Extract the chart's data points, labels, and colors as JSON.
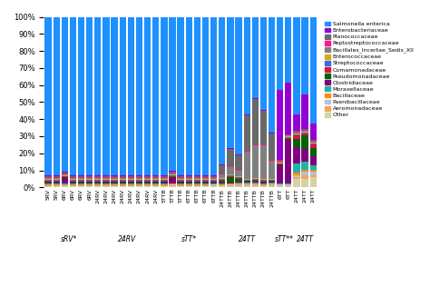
{
  "categories": [
    "5RV",
    "5RV",
    "6RV",
    "6RV",
    "6RV",
    "6RV",
    "24RV",
    "24RV",
    "24RV",
    "24RV",
    "24RV",
    "24RV",
    "24RV",
    "24RV",
    "5TTB",
    "5TTB",
    "5TTB",
    "6TTB",
    "6TTB",
    "6TTB",
    "6TTB",
    "24TTB",
    "24TTB",
    "24TTB",
    "24TTB",
    "24TTB",
    "24TTB",
    "24TTB",
    "6TT",
    "6TT",
    "24TT",
    "24TT",
    "24TT"
  ],
  "group_labels": [
    "sRV*",
    "24RV",
    "sTT*",
    "24TT",
    "sTT**",
    "24TT"
  ],
  "group_boundaries": [
    6,
    14,
    21,
    28,
    30,
    33
  ],
  "legend_labels": [
    "Other",
    "Aeromonadaceae",
    "Paenibacillaceae",
    "Bacillaceae",
    "Moraxellaceae",
    "Clostridiaceae",
    "Pseudomonadaceae",
    "Comamonadaceae",
    "Streptococcaceae",
    "Enterococcaceae",
    "Bacillales_Incertae_Sedis_XII",
    "Peptostreptococcaceae",
    "Planococcaceae",
    "Enterobacteriaceae",
    "Salmonella enterica"
  ],
  "colors": [
    "#d3d3a4",
    "#f4a460",
    "#b0c4de",
    "#ff8c00",
    "#20b2aa",
    "#800080",
    "#006400",
    "#dc143c",
    "#4169e1",
    "#daa520",
    "#808080",
    "#ff1493",
    "#696969",
    "#9400d3",
    "#1e90ff"
  ],
  "data": [
    [
      0.005,
      0.005,
      0.005,
      0.005,
      0.005,
      0.005,
      0.005,
      0.005,
      0.005,
      0.005,
      0.005,
      0.005,
      0.005,
      0.005,
      0.005,
      0.005,
      0.005,
      0.005,
      0.005,
      0.005,
      0.005,
      0.005,
      0.005,
      0.005,
      0.005,
      0.005,
      0.005,
      0.005,
      0.005,
      0.005,
      0.05,
      0.05,
      0.06
    ],
    [
      0.005,
      0.005,
      0.005,
      0.005,
      0.005,
      0.005,
      0.005,
      0.005,
      0.005,
      0.005,
      0.005,
      0.005,
      0.005,
      0.005,
      0.005,
      0.005,
      0.005,
      0.005,
      0.005,
      0.005,
      0.005,
      0.005,
      0.005,
      0.005,
      0.005,
      0.005,
      0.005,
      0.005,
      0.005,
      0.005,
      0.01,
      0.02,
      0.01
    ],
    [
      0.005,
      0.005,
      0.005,
      0.005,
      0.005,
      0.005,
      0.005,
      0.005,
      0.005,
      0.005,
      0.005,
      0.005,
      0.005,
      0.005,
      0.005,
      0.005,
      0.005,
      0.005,
      0.005,
      0.005,
      0.005,
      0.005,
      0.005,
      0.005,
      0.005,
      0.005,
      0.005,
      0.005,
      0.005,
      0.005,
      0.01,
      0.02,
      0.02
    ],
    [
      0.005,
      0.005,
      0.005,
      0.005,
      0.005,
      0.005,
      0.005,
      0.005,
      0.005,
      0.005,
      0.005,
      0.005,
      0.005,
      0.005,
      0.005,
      0.005,
      0.005,
      0.005,
      0.005,
      0.005,
      0.005,
      0.005,
      0.005,
      0.005,
      0.005,
      0.005,
      0.005,
      0.005,
      0.005,
      0.005,
      0.02,
      0.01,
      0.01
    ],
    [
      0.005,
      0.005,
      0.005,
      0.005,
      0.005,
      0.005,
      0.005,
      0.005,
      0.005,
      0.005,
      0.005,
      0.005,
      0.005,
      0.005,
      0.005,
      0.005,
      0.005,
      0.005,
      0.005,
      0.005,
      0.005,
      0.005,
      0.005,
      0.005,
      0.005,
      0.005,
      0.005,
      0.005,
      0.005,
      0.005,
      0.05,
      0.05,
      0.03
    ],
    [
      0.005,
      0.005,
      0.03,
      0.005,
      0.005,
      0.005,
      0.005,
      0.005,
      0.005,
      0.005,
      0.005,
      0.005,
      0.005,
      0.005,
      0.005,
      0.03,
      0.005,
      0.005,
      0.005,
      0.005,
      0.005,
      0.005,
      0.005,
      0.005,
      0.005,
      0.005,
      0.005,
      0.005,
      0.1,
      0.25,
      0.1,
      0.07,
      0.05
    ],
    [
      0.005,
      0.005,
      0.005,
      0.005,
      0.005,
      0.005,
      0.005,
      0.005,
      0.005,
      0.005,
      0.005,
      0.005,
      0.005,
      0.005,
      0.005,
      0.005,
      0.005,
      0.005,
      0.005,
      0.005,
      0.005,
      0.01,
      0.03,
      0.02,
      0.005,
      0.005,
      0.005,
      0.005,
      0.005,
      0.005,
      0.05,
      0.08,
      0.05
    ],
    [
      0.005,
      0.005,
      0.005,
      0.005,
      0.005,
      0.005,
      0.005,
      0.005,
      0.005,
      0.005,
      0.005,
      0.005,
      0.005,
      0.005,
      0.005,
      0.005,
      0.005,
      0.005,
      0.005,
      0.005,
      0.005,
      0.005,
      0.005,
      0.005,
      0.005,
      0.005,
      0.005,
      0.005,
      0.005,
      0.005,
      0.02,
      0.01,
      0.02
    ],
    [
      0.005,
      0.005,
      0.005,
      0.005,
      0.005,
      0.005,
      0.005,
      0.005,
      0.005,
      0.005,
      0.005,
      0.005,
      0.005,
      0.005,
      0.005,
      0.005,
      0.005,
      0.005,
      0.005,
      0.005,
      0.005,
      0.005,
      0.005,
      0.005,
      0.005,
      0.005,
      0.005,
      0.005,
      0.005,
      0.005,
      0.005,
      0.005,
      0.005
    ],
    [
      0.005,
      0.005,
      0.005,
      0.005,
      0.005,
      0.005,
      0.005,
      0.005,
      0.005,
      0.005,
      0.005,
      0.005,
      0.005,
      0.005,
      0.005,
      0.005,
      0.005,
      0.005,
      0.005,
      0.005,
      0.005,
      0.005,
      0.005,
      0.005,
      0.005,
      0.005,
      0.005,
      0.005,
      0.005,
      0.005,
      0.005,
      0.005,
      0.005
    ],
    [
      0.005,
      0.005,
      0.005,
      0.005,
      0.005,
      0.005,
      0.005,
      0.005,
      0.005,
      0.005,
      0.005,
      0.005,
      0.005,
      0.005,
      0.005,
      0.005,
      0.005,
      0.005,
      0.005,
      0.005,
      0.005,
      0.02,
      0.04,
      0.03,
      0.15,
      0.18,
      0.2,
      0.1,
      0.005,
      0.005,
      0.005,
      0.005,
      0.005
    ],
    [
      0.005,
      0.005,
      0.005,
      0.005,
      0.005,
      0.005,
      0.005,
      0.005,
      0.005,
      0.005,
      0.005,
      0.005,
      0.005,
      0.005,
      0.005,
      0.005,
      0.005,
      0.005,
      0.005,
      0.005,
      0.005,
      0.005,
      0.005,
      0.005,
      0.005,
      0.005,
      0.005,
      0.005,
      0.005,
      0.005,
      0.005,
      0.005,
      0.005
    ],
    [
      0.005,
      0.005,
      0.005,
      0.005,
      0.005,
      0.005,
      0.005,
      0.005,
      0.005,
      0.005,
      0.005,
      0.005,
      0.005,
      0.005,
      0.005,
      0.005,
      0.005,
      0.005,
      0.005,
      0.005,
      0.005,
      0.05,
      0.1,
      0.08,
      0.2,
      0.25,
      0.2,
      0.15,
      0.005,
      0.005,
      0.005,
      0.005,
      0.005
    ],
    [
      0.005,
      0.005,
      0.005,
      0.005,
      0.005,
      0.005,
      0.005,
      0.005,
      0.005,
      0.005,
      0.005,
      0.005,
      0.005,
      0.005,
      0.005,
      0.005,
      0.005,
      0.005,
      0.005,
      0.005,
      0.005,
      0.005,
      0.005,
      0.005,
      0.005,
      0.005,
      0.005,
      0.005,
      0.4,
      0.3,
      0.1,
      0.2,
      0.1
    ],
    [
      0.95,
      0.95,
      0.93,
      0.95,
      0.94,
      0.93,
      0.94,
      0.95,
      0.95,
      0.94,
      0.94,
      0.93,
      0.93,
      0.94,
      0.94,
      0.88,
      0.93,
      0.94,
      0.93,
      0.93,
      0.92,
      0.87,
      0.75,
      0.78,
      0.55,
      0.45,
      0.55,
      0.65,
      0.42,
      0.38,
      0.58,
      0.45,
      0.62
    ]
  ]
}
